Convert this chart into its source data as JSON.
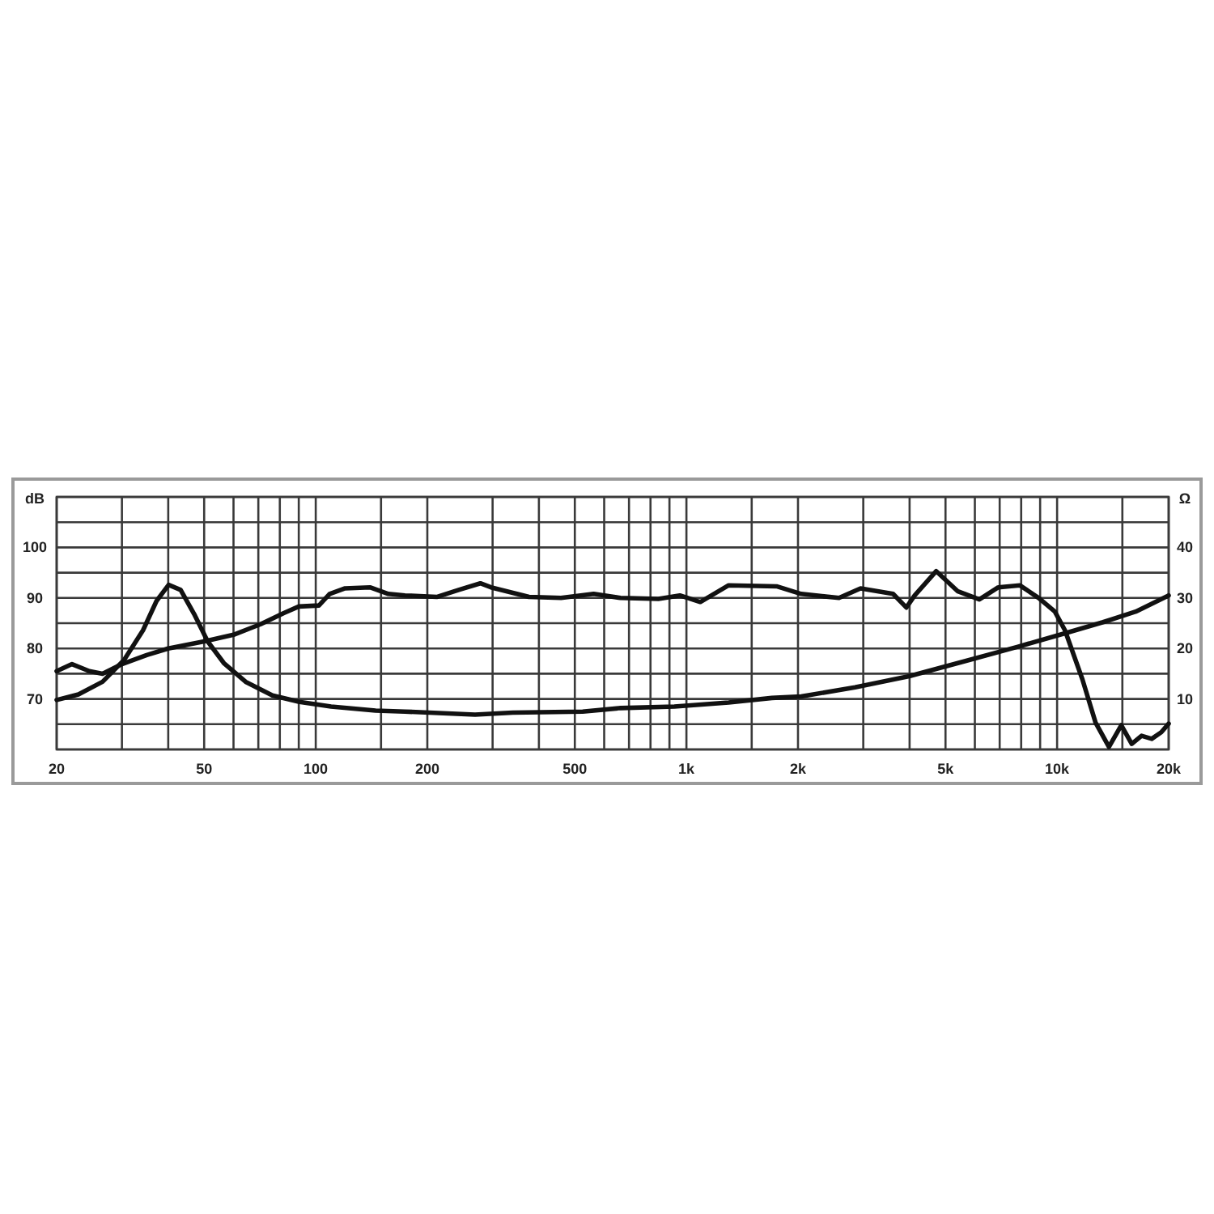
{
  "chart_data": {
    "type": "line",
    "log": "x",
    "grid": true,
    "ylabel": "dB",
    "y2label": "Ω",
    "xlim": [
      20,
      20000
    ],
    "xticks": [
      20,
      {
        "value": 30,
        "label": null
      },
      {
        "value": 40,
        "label": null
      },
      50,
      {
        "value": 60,
        "label": null
      },
      {
        "value": 70,
        "label": null
      },
      {
        "value": 80,
        "label": null
      },
      {
        "value": 90,
        "label": null
      },
      100,
      {
        "value": 150,
        "label": null
      },
      200,
      {
        "value": 300,
        "label": null
      },
      {
        "value": 400,
        "label": null
      },
      500,
      {
        "value": 600,
        "label": null
      },
      {
        "value": 700,
        "label": null
      },
      {
        "value": 800,
        "label": null
      },
      {
        "value": 900,
        "label": null
      },
      {
        "value": 1000,
        "label": "1k"
      },
      {
        "value": 1500,
        "label": null
      },
      {
        "value": 2000,
        "label": "2k"
      },
      {
        "value": 3000,
        "label": null
      },
      {
        "value": 4000,
        "label": null
      },
      {
        "value": 5000,
        "label": "5k"
      },
      {
        "value": 6000,
        "label": null
      },
      {
        "value": 7000,
        "label": null
      },
      {
        "value": 8000,
        "label": null
      },
      {
        "value": 9000,
        "label": null
      },
      {
        "value": 10000,
        "label": "10k"
      },
      {
        "value": 15000,
        "label": null
      },
      {
        "value": 20000,
        "label": "20k"
      }
    ],
    "ylim": [
      60,
      110
    ],
    "yticks": [
      {
        "value": 60,
        "label": null
      },
      {
        "value": 65,
        "label": null
      },
      70,
      {
        "value": 75,
        "label": null
      },
      80,
      {
        "value": 85,
        "label": null
      },
      90,
      {
        "value": 95,
        "label": null
      },
      100,
      {
        "value": 105,
        "label": null
      },
      {
        "value": 110,
        "label": null
      }
    ],
    "y2lim": [
      0,
      50
    ],
    "y2ticks": [
      10,
      20,
      30,
      40
    ],
    "series": [
      {
        "color": "#111111",
        "x": [
          20,
          22,
          24.5,
          26.6,
          30,
          35,
          40,
          50,
          60,
          71,
          82,
          90,
          102,
          109,
          120,
          140,
          157,
          174,
          212,
          243,
          278,
          297,
          376,
          459,
          562,
          664,
          840,
          960,
          1090,
          1300,
          1750,
          2040,
          2580,
          2950,
          3610,
          3920,
          4130,
          4720,
          5400,
          6170,
          6940,
          7930,
          8920,
          9860,
          10500,
          11700,
          12700,
          13800,
          14900,
          15900,
          16900,
          18000,
          19100,
          20000
        ],
        "values": [
          75.5,
          76.9,
          75.5,
          75,
          76.9,
          78.7,
          80,
          81.4,
          82.7,
          84.8,
          87,
          88.3,
          88.5,
          90.8,
          91.9,
          92.1,
          90.8,
          90.5,
          90.2,
          91.6,
          92.9,
          92.1,
          90.2,
          90,
          90.8,
          90,
          89.8,
          90.5,
          89.2,
          92.5,
          92.3,
          90.8,
          90,
          91.9,
          90.8,
          88.1,
          90.5,
          95.3,
          91.3,
          89.7,
          92.1,
          92.5,
          90,
          87.3,
          83.6,
          73.9,
          65.3,
          60.5,
          64.8,
          61.1,
          62.7,
          62.1,
          63.4,
          65.1
        ]
      },
      {
        "color": "#111111",
        "axis": "y2",
        "x": [
          20,
          22.9,
          26.6,
          30.4,
          34.2,
          37.2,
          40.1,
          43.2,
          47,
          51.1,
          56.5,
          64.7,
          76.4,
          90.4,
          110,
          145,
          174,
          269,
          340,
          525,
          664,
          928,
          1300,
          1700,
          2040,
          2850,
          3990,
          5580,
          7800,
          10500,
          13300,
          16300,
          20000
        ],
        "values": [
          9.8,
          10.9,
          13.4,
          17.7,
          23.6,
          29.4,
          32.6,
          31.6,
          26.8,
          21.4,
          17.1,
          13.4,
          10.7,
          9.4,
          8.5,
          7.7,
          7.5,
          6.9,
          7.3,
          7.5,
          8.2,
          8.5,
          9.3,
          10.2,
          10.5,
          12.3,
          14.5,
          17.4,
          20.3,
          23,
          25.2,
          27.3,
          30.5
        ]
      }
    ]
  }
}
